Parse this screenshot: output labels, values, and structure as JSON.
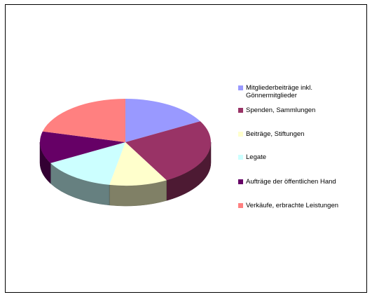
{
  "chart_data": {
    "type": "pie",
    "style": "3d",
    "slices": [
      {
        "label": "Mitgliederbeiträge inkl. Gönnermitglieder",
        "value": 17,
        "color": "#9999FF"
      },
      {
        "label": "Spenden, Sammlungen",
        "value": 25,
        "color": "#993366"
      },
      {
        "label": "Beiträge, Stiftungen",
        "value": 11,
        "color": "#FFFFCC"
      },
      {
        "label": "Legate",
        "value": 14,
        "color": "#CCFFFF"
      },
      {
        "label": "Aufträge der öffentlichen Hand",
        "value": 12,
        "color": "#660066"
      },
      {
        "label": "Verkäufe, erbrachte Leistungen",
        "value": 21,
        "color": "#FF8080"
      }
    ],
    "legend_position": "right"
  }
}
